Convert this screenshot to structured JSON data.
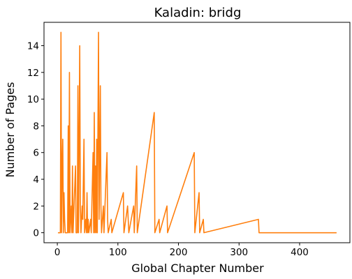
{
  "chart_data": {
    "type": "line",
    "title": "Kaladin: bridg",
    "xlabel": "Global Chapter Number",
    "ylabel": "Number of Pages",
    "xlim": [
      -22,
      483
    ],
    "ylim": [
      -0.75,
      15.75
    ],
    "xticks": [
      0,
      100,
      200,
      300,
      400
    ],
    "yticks": [
      0,
      2,
      4,
      6,
      8,
      10,
      12,
      14
    ],
    "grid": false,
    "color": "#ff7f0e",
    "x_start": 1,
    "x_end": 461,
    "spikes": [
      [
        5,
        0
      ],
      [
        6,
        15
      ],
      [
        7,
        0
      ],
      [
        8,
        5
      ],
      [
        9,
        7
      ],
      [
        10,
        0
      ],
      [
        11,
        3
      ],
      [
        12,
        1
      ],
      [
        13,
        0
      ],
      [
        17,
        0
      ],
      [
        18,
        8
      ],
      [
        19,
        0
      ],
      [
        20,
        12
      ],
      [
        21,
        0
      ],
      [
        23,
        2
      ],
      [
        24,
        0
      ],
      [
        25,
        5
      ],
      [
        26,
        0
      ],
      [
        30,
        5
      ],
      [
        31,
        0
      ],
      [
        33,
        0
      ],
      [
        34,
        11
      ],
      [
        35,
        0
      ],
      [
        37,
        14
      ],
      [
        38,
        2
      ],
      [
        39,
        0
      ],
      [
        41,
        2
      ],
      [
        42,
        1
      ],
      [
        44,
        7
      ],
      [
        45,
        0
      ],
      [
        47,
        1
      ],
      [
        48,
        0
      ],
      [
        49,
        3
      ],
      [
        50,
        0
      ],
      [
        51,
        1
      ],
      [
        52,
        0
      ],
      [
        55,
        1
      ],
      [
        56,
        0
      ],
      [
        59,
        6
      ],
      [
        60,
        0
      ],
      [
        61,
        9
      ],
      [
        62,
        0
      ],
      [
        63,
        5
      ],
      [
        64,
        0
      ],
      [
        65,
        7
      ],
      [
        66,
        0
      ],
      [
        68,
        15
      ],
      [
        69,
        1
      ],
      [
        71,
        11
      ],
      [
        72,
        2
      ],
      [
        73,
        0
      ],
      [
        76,
        2
      ],
      [
        77,
        0
      ],
      [
        82,
        6
      ],
      [
        83,
        1
      ],
      [
        84,
        0
      ],
      [
        89,
        1
      ],
      [
        90,
        0
      ],
      [
        109,
        3
      ],
      [
        110,
        0
      ],
      [
        116,
        2
      ],
      [
        117,
        1
      ],
      [
        118,
        0
      ],
      [
        126,
        2
      ],
      [
        127,
        0
      ],
      [
        131,
        5
      ],
      [
        132,
        0
      ],
      [
        160,
        9
      ],
      [
        161,
        0
      ],
      [
        168,
        1
      ],
      [
        169,
        0
      ],
      [
        181,
        2
      ],
      [
        182,
        0
      ],
      [
        226,
        6
      ],
      [
        227,
        0
      ],
      [
        234,
        3
      ],
      [
        235,
        0
      ],
      [
        241,
        1
      ],
      [
        242,
        0
      ],
      [
        332,
        1
      ],
      [
        333,
        0
      ]
    ]
  }
}
